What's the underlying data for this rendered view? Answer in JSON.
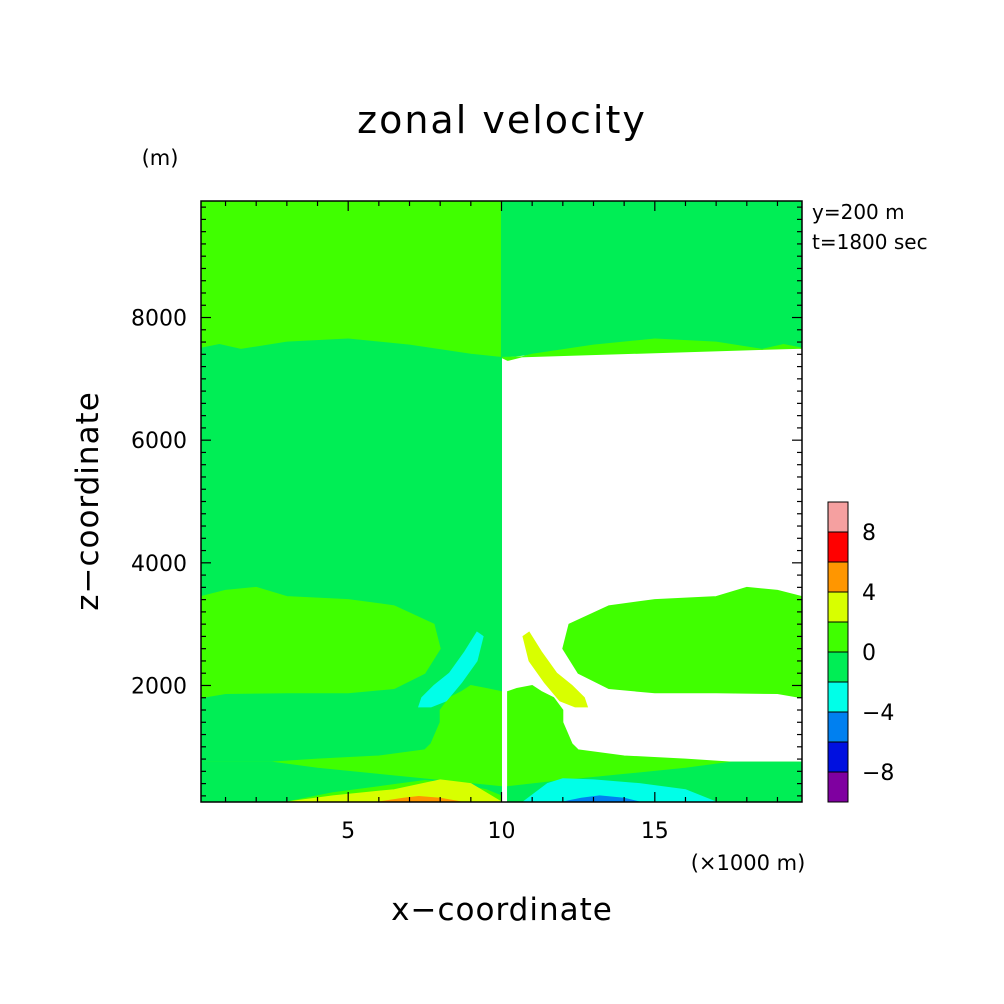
{
  "chart_data": {
    "type": "heatmap",
    "title": "zonal velocity",
    "xlabel": "x−coordinate",
    "ylabel": "z−coordinate",
    "x_unit": "(×1000 m)",
    "y_unit": "(m)",
    "annotations": [
      "y=200 m",
      "t=1800 sec"
    ],
    "xlim": [
      0.2,
      19.8
    ],
    "ylim": [
      100,
      9900
    ],
    "x_major_ticks": [
      5,
      10,
      15
    ],
    "x_tick_labels": [
      "5",
      "10",
      "15"
    ],
    "y_major_ticks": [
      2000,
      4000,
      6000,
      8000
    ],
    "y_tick_labels": [
      "2000",
      "4000",
      "6000",
      "8000"
    ],
    "colorbar": {
      "levels": [
        -10,
        -8,
        -6,
        -4,
        -2,
        0,
        2,
        4,
        6,
        8,
        10
      ],
      "tick_values": [
        -8,
        -4,
        0,
        4,
        8
      ],
      "tick_labels": [
        "−8",
        "−4",
        "0",
        "4",
        "8"
      ],
      "colors": [
        "#7f00a0",
        "#0010e0",
        "#0080f0",
        "#00ffe8",
        "#00ee55",
        "#40ff00",
        "#d8ff00",
        "#ff9600",
        "#ff0000",
        "#f5a0a0"
      ]
    },
    "regions": [
      {
        "name": "0 to 2",
        "color": "#40ff00",
        "points": [
          [
            0.2,
            9900
          ],
          [
            10.0,
            9900
          ],
          [
            10.0,
            7350
          ],
          [
            9.0,
            7400
          ],
          [
            7.0,
            7550
          ],
          [
            5.0,
            7650
          ],
          [
            3.0,
            7600
          ],
          [
            1.5,
            7480
          ],
          [
            0.8,
            7560
          ],
          [
            0.2,
            7500
          ]
        ]
      },
      {
        "name": "-2 to 0",
        "color": "#00ee55",
        "points": [
          [
            10.0,
            9900
          ],
          [
            19.8,
            9900
          ],
          [
            19.8,
            7500
          ],
          [
            19.2,
            7560
          ],
          [
            18.5,
            7480
          ],
          [
            17.0,
            7600
          ],
          [
            15.0,
            7650
          ],
          [
            13.0,
            7550
          ],
          [
            11.0,
            7400
          ],
          [
            10.0,
            7350
          ]
        ]
      },
      {
        "name": "0 to 2",
        "color": "#40ff00",
        "points": [
          [
            10.0,
            7350
          ],
          [
            10.2,
            7300
          ],
          [
            11.0,
            7400
          ],
          [
            13.0,
            7550
          ],
          [
            15.0,
            7650
          ],
          [
            17.0,
            7600
          ],
          [
            18.5,
            7480
          ],
          [
            19.2,
            7560
          ],
          [
            19.8,
            7500
          ],
          [
            19.8,
            100
          ],
          [
            10.2,
            100
          ],
          [
            10.2,
            1900
          ],
          [
            10.5,
            1950
          ],
          [
            11.0,
            2000
          ],
          [
            11.3,
            1900
          ],
          [
            11.7,
            1800
          ],
          [
            12.0,
            1600
          ],
          [
            12.0,
            1400
          ],
          [
            12.3,
            1050
          ],
          [
            12.5,
            950
          ],
          [
            14.0,
            850
          ],
          [
            16.0,
            800
          ],
          [
            17.5,
            750
          ],
          [
            19.8,
            750
          ],
          [
            19.8,
            1800
          ],
          [
            19.0,
            1870
          ],
          [
            17.0,
            1880
          ],
          [
            15.0,
            1880
          ],
          [
            13.5,
            1950
          ],
          [
            12.5,
            2200
          ],
          [
            12.0,
            2600
          ],
          [
            12.2,
            3000
          ],
          [
            13.5,
            3300
          ],
          [
            15.0,
            3400
          ],
          [
            17.0,
            3450
          ],
          [
            18.0,
            3600
          ],
          [
            19.0,
            3550
          ],
          [
            19.8,
            3450
          ],
          [
            19.8,
            7500
          ]
        ]
      },
      {
        "name": "-2 to 0",
        "color": "#00ee55",
        "points": [
          [
            0.2,
            7500
          ],
          [
            0.8,
            7560
          ],
          [
            1.5,
            7480
          ],
          [
            3.0,
            7600
          ],
          [
            5.0,
            7650
          ],
          [
            7.0,
            7550
          ],
          [
            9.0,
            7400
          ],
          [
            10.0,
            7350
          ],
          [
            10.0,
            100
          ],
          [
            0.2,
            100
          ]
        ]
      },
      {
        "name": "0 to 2",
        "color": "#40ff00",
        "points": [
          [
            0.2,
            3450
          ],
          [
            1.0,
            3550
          ],
          [
            2.0,
            3600
          ],
          [
            3.0,
            3450
          ],
          [
            5.0,
            3400
          ],
          [
            6.5,
            3300
          ],
          [
            7.8,
            3000
          ],
          [
            8.0,
            2600
          ],
          [
            7.5,
            2200
          ],
          [
            6.5,
            1950
          ],
          [
            5.0,
            1880
          ],
          [
            3.0,
            1880
          ],
          [
            1.0,
            1870
          ],
          [
            0.2,
            1800
          ]
        ]
      },
      {
        "name": "0 to 2",
        "color": "#40ff00",
        "points": [
          [
            0.2,
            750
          ],
          [
            2.5,
            750
          ],
          [
            4.0,
            800
          ],
          [
            6.0,
            850
          ],
          [
            7.5,
            950
          ],
          [
            7.7,
            1050
          ],
          [
            8.0,
            1400
          ],
          [
            8.0,
            1600
          ],
          [
            8.3,
            1800
          ],
          [
            8.7,
            1900
          ],
          [
            9.0,
            2000
          ],
          [
            9.5,
            1950
          ],
          [
            10.0,
            1900
          ],
          [
            10.0,
            100
          ],
          [
            0.2,
            100
          ]
        ]
      },
      {
        "name": "-2 to 0",
        "color": "#00ee55",
        "points": [
          [
            0.2,
            750
          ],
          [
            2.5,
            750
          ],
          [
            4.0,
            650
          ],
          [
            6.0,
            550
          ],
          [
            8.0,
            450
          ],
          [
            10.0,
            350
          ],
          [
            10.0,
            100
          ],
          [
            0.2,
            100
          ]
        ]
      },
      {
        "name": "0 to 2",
        "color": "#40ff00",
        "points": [
          [
            3.0,
            100
          ],
          [
            3.5,
            150
          ],
          [
            4.5,
            250
          ],
          [
            6.0,
            350
          ],
          [
            7.5,
            450
          ],
          [
            8.5,
            400
          ],
          [
            9.5,
            300
          ],
          [
            10.0,
            200
          ],
          [
            10.0,
            100
          ]
        ]
      },
      {
        "name": "2 to 4",
        "color": "#d8ff00",
        "points": [
          [
            3.0,
            100
          ],
          [
            4.5,
            200
          ],
          [
            6.5,
            300
          ],
          [
            8.0,
            460
          ],
          [
            9.0,
            400
          ],
          [
            9.5,
            250
          ],
          [
            10.0,
            100
          ]
        ]
      },
      {
        "name": "4 to 6",
        "color": "#ff9600",
        "points": [
          [
            6.0,
            100
          ],
          [
            6.8,
            160
          ],
          [
            7.3,
            190
          ],
          [
            8.0,
            160
          ],
          [
            8.7,
            100
          ]
        ]
      },
      {
        "name": "-2 to 0",
        "color": "#00ee55",
        "points": [
          [
            10.2,
            100
          ],
          [
            10.2,
            350
          ],
          [
            12.0,
            450
          ],
          [
            14.0,
            550
          ],
          [
            16.0,
            650
          ],
          [
            17.5,
            750
          ],
          [
            19.8,
            750
          ],
          [
            19.8,
            100
          ]
        ]
      },
      {
        "name": "-4 to -2",
        "color": "#00ffe8",
        "points": [
          [
            10.7,
            100
          ],
          [
            11.5,
            400
          ],
          [
            12.0,
            480
          ],
          [
            13.0,
            460
          ],
          [
            14.5,
            400
          ],
          [
            16.0,
            300
          ],
          [
            17.0,
            100
          ]
        ]
      },
      {
        "name": "-6 to -4",
        "color": "#0080f0",
        "points": [
          [
            12.0,
            100
          ],
          [
            12.6,
            160
          ],
          [
            13.2,
            200
          ],
          [
            14.0,
            160
          ],
          [
            14.5,
            100
          ]
        ]
      },
      {
        "name": "-4 to -2",
        "color": "#00ffe8",
        "points": [
          [
            9.2,
            2870
          ],
          [
            9.4,
            2800
          ],
          [
            9.2,
            2400
          ],
          [
            8.7,
            2050
          ],
          [
            8.2,
            1750
          ],
          [
            7.7,
            1650
          ],
          [
            7.3,
            1650
          ],
          [
            7.4,
            1800
          ],
          [
            7.8,
            2000
          ],
          [
            8.3,
            2200
          ],
          [
            8.8,
            2550
          ]
        ]
      },
      {
        "name": "2 to 4",
        "color": "#d8ff00",
        "points": [
          [
            10.9,
            2870
          ],
          [
            10.7,
            2800
          ],
          [
            10.9,
            2400
          ],
          [
            11.4,
            2050
          ],
          [
            11.9,
            1750
          ],
          [
            12.4,
            1650
          ],
          [
            12.8,
            1650
          ],
          [
            12.7,
            1800
          ],
          [
            12.3,
            2000
          ],
          [
            11.8,
            2200
          ],
          [
            11.3,
            2550
          ]
        ]
      }
    ]
  }
}
